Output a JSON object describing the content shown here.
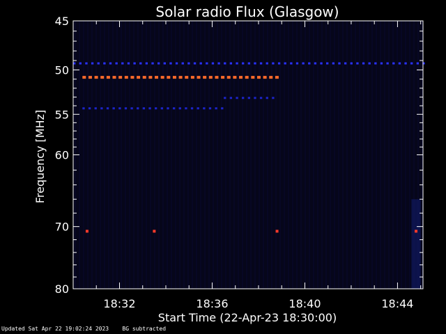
{
  "chart_data": {
    "type": "heatmap",
    "title": "Solar radio Flux (Glasgow)",
    "xlabel": "Start Time (22-Apr-23 18:30:00)",
    "ylabel": "Frequency [MHz]",
    "x_range_minutes": [
      0,
      15.1
    ],
    "ylim_mhz": [
      45,
      80
    ],
    "y_scale": "log",
    "x_ticks": [
      {
        "label": "18:32",
        "minute": 2
      },
      {
        "label": "18:36",
        "minute": 6
      },
      {
        "label": "18:40",
        "minute": 10
      },
      {
        "label": "18:44",
        "minute": 14
      }
    ],
    "y_ticks": [
      45,
      50,
      55,
      60,
      70,
      80
    ],
    "features": [
      {
        "desc": "strong band",
        "freq_mhz": 50.8,
        "minute_start": 0.4,
        "minute_end": 8.8,
        "color": "#ff6a2a"
      },
      {
        "desc": "blue band",
        "freq_mhz": 49.3,
        "minute_start": 0,
        "minute_end": 15.1,
        "color": "#2a32ff"
      },
      {
        "desc": "blue band",
        "freq_mhz": 54.3,
        "minute_start": 0.4,
        "minute_end": 6.5,
        "color": "#1c24c8"
      },
      {
        "desc": "blue band",
        "freq_mhz": 53.1,
        "minute_start": 6.5,
        "minute_end": 8.8,
        "color": "#1c24c8"
      },
      {
        "desc": "spike",
        "freq_mhz": 70.7,
        "minute": 0.6,
        "color": "#ff3a2a"
      },
      {
        "desc": "spike",
        "freq_mhz": 70.7,
        "minute": 3.5,
        "color": "#ff3a2a"
      },
      {
        "desc": "spike",
        "freq_mhz": 70.7,
        "minute": 8.8,
        "color": "#ff3a2a"
      },
      {
        "desc": "spike",
        "freq_mhz": 70.7,
        "minute": 14.8,
        "color": "#ff3a2a"
      }
    ],
    "colors": {
      "background": "#000000",
      "plot": "#06061a",
      "axis": "#ffffff"
    }
  },
  "footer": {
    "updated": "Updated Sat Apr 22 19:02:24 2023",
    "note": "BG subtracted"
  }
}
